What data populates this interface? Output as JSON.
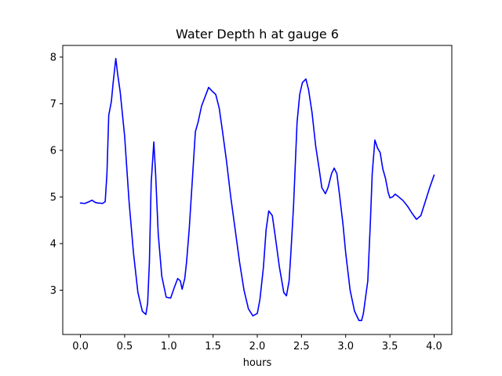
{
  "chart_data": {
    "type": "line",
    "title": "Water Depth h at gauge 6",
    "xlabel": "hours",
    "ylabel": "",
    "xlim": [
      -0.2,
      4.2
    ],
    "ylim": [
      2.05,
      8.25
    ],
    "xticks": [
      0.0,
      0.5,
      1.0,
      1.5,
      2.0,
      2.5,
      3.0,
      3.5,
      4.0
    ],
    "xtick_labels": [
      "0.0",
      "0.5",
      "1.0",
      "1.5",
      "2.0",
      "2.5",
      "3.0",
      "3.5",
      "4.0"
    ],
    "yticks": [
      3,
      4,
      5,
      6,
      7,
      8
    ],
    "ytick_labels": [
      "3",
      "4",
      "5",
      "6",
      "7",
      "8"
    ],
    "grid": false,
    "series": [
      {
        "color": "#0000ff",
        "x": [
          0.0,
          0.05,
          0.1,
          0.13,
          0.17,
          0.2,
          0.25,
          0.28,
          0.3,
          0.32,
          0.35,
          0.37,
          0.4,
          0.42,
          0.45,
          0.5,
          0.55,
          0.6,
          0.65,
          0.7,
          0.74,
          0.76,
          0.78,
          0.8,
          0.83,
          0.85,
          0.88,
          0.92,
          0.97,
          1.02,
          1.06,
          1.1,
          1.13,
          1.15,
          1.18,
          1.2,
          1.23,
          1.27,
          1.3,
          1.33,
          1.37,
          1.4,
          1.45,
          1.5,
          1.53,
          1.57,
          1.6,
          1.65,
          1.7,
          1.75,
          1.8,
          1.85,
          1.9,
          1.95,
          2.0,
          2.03,
          2.07,
          2.1,
          2.13,
          2.17,
          2.2,
          2.25,
          2.3,
          2.33,
          2.36,
          2.38,
          2.41,
          2.45,
          2.48,
          2.51,
          2.55,
          2.58,
          2.62,
          2.66,
          2.7,
          2.73,
          2.77,
          2.8,
          2.84,
          2.87,
          2.9,
          2.93,
          2.97,
          3.0,
          3.05,
          3.1,
          3.15,
          3.18,
          3.2,
          3.25,
          3.28,
          3.3,
          3.33,
          3.36,
          3.39,
          3.42,
          3.45,
          3.48,
          3.5,
          3.53,
          3.56,
          3.6,
          3.65,
          3.7,
          3.75,
          3.8,
          3.85,
          3.9,
          3.95,
          4.0
        ],
        "y": [
          4.87,
          4.86,
          4.9,
          4.93,
          4.88,
          4.87,
          4.86,
          4.9,
          5.5,
          6.75,
          7.05,
          7.45,
          7.97,
          7.65,
          7.25,
          6.3,
          4.9,
          3.8,
          2.95,
          2.55,
          2.48,
          2.72,
          3.6,
          5.3,
          6.18,
          5.5,
          4.2,
          3.3,
          2.85,
          2.83,
          3.05,
          3.25,
          3.2,
          3.02,
          3.25,
          3.6,
          4.3,
          5.5,
          6.4,
          6.6,
          6.95,
          7.1,
          7.35,
          7.25,
          7.2,
          6.9,
          6.5,
          5.8,
          5.0,
          4.3,
          3.6,
          3.0,
          2.6,
          2.45,
          2.5,
          2.8,
          3.5,
          4.3,
          4.7,
          4.6,
          4.2,
          3.5,
          2.95,
          2.88,
          3.2,
          3.8,
          4.8,
          6.6,
          7.2,
          7.45,
          7.53,
          7.3,
          6.8,
          6.1,
          5.6,
          5.2,
          5.07,
          5.2,
          5.5,
          5.62,
          5.5,
          5.05,
          4.4,
          3.8,
          3.0,
          2.55,
          2.35,
          2.35,
          2.5,
          3.2,
          4.5,
          5.5,
          6.22,
          6.05,
          5.95,
          5.6,
          5.4,
          5.1,
          4.98,
          5.0,
          5.06,
          5.0,
          4.92,
          4.8,
          4.65,
          4.52,
          4.6,
          4.9,
          5.2,
          5.47
        ]
      }
    ]
  }
}
